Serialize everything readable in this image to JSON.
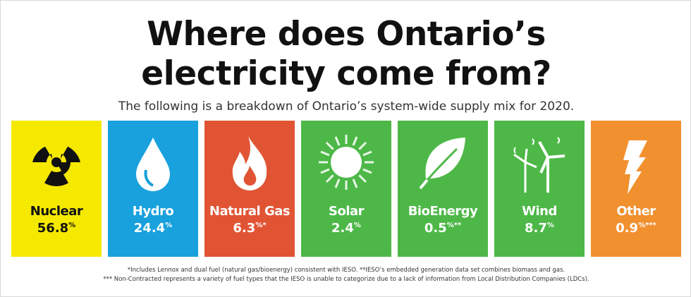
{
  "title": [
    "Where does Ontario’s",
    "electricity come from?"
  ],
  "subtitle": "The following is a breakdown of Ontario’s system-wide supply mix for 2020.",
  "tiles": [
    {
      "name": "Nuclear",
      "value": 56.8,
      "suffix": "%",
      "color": "#f6e900",
      "text_color": "#111111"
    },
    {
      "name": "Hydro",
      "value": 24.4,
      "suffix": "%",
      "color": "#18a1dc",
      "text_color": "#ffffff"
    },
    {
      "name": "Natural Gas",
      "value": 6.3,
      "suffix": "%*",
      "color": "#e05434",
      "text_color": "#ffffff"
    },
    {
      "name": "Solar",
      "value": 2.4,
      "suffix": "%",
      "color": "#4db848",
      "text_color": "#ffffff"
    },
    {
      "name": "BioEnergy",
      "value": 0.5,
      "suffix": "%**",
      "color": "#4db848",
      "text_color": "#ffffff"
    },
    {
      "name": "Wind",
      "value": 8.7,
      "suffix": "%",
      "color": "#4db848",
      "text_color": "#ffffff"
    },
    {
      "name": "Other",
      "value": 0.9,
      "suffix": "%***",
      "color": "#f1902f",
      "text_color": "#ffffff"
    }
  ],
  "footnotes": [
    "*Includes Lennox and dual fuel (natural gas/bioenergy) consistent with IESO. **IESO’s embedded generation data set combines biomass and gas.",
    "*** Non-Contracted represents a variety of fuel types that the IESO is unable to categorize due to a lack of information from Local Distribution Companies (LDCs)."
  ]
}
